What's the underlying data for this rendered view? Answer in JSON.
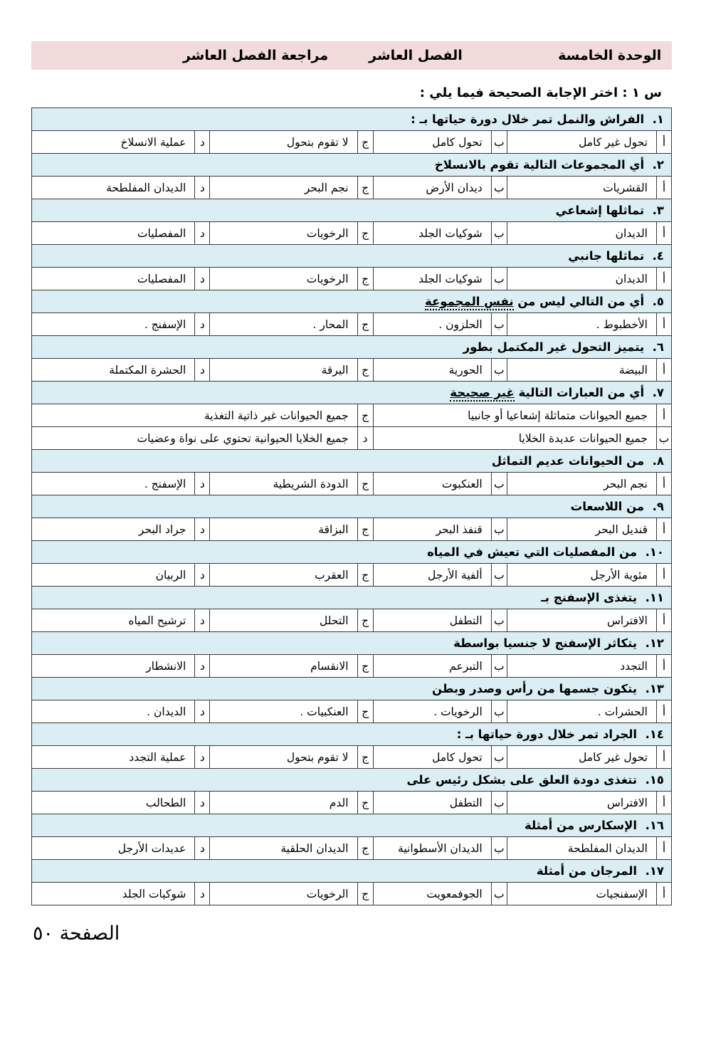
{
  "banner": {
    "unit_label": "الوحدة الخامسة",
    "chapter_label": "الفصل العاشر",
    "review_label": "مراجعة الفصل العاشر",
    "bg_color": "#F2DCDB"
  },
  "instruction": "س ١ : اختر الإجابة الصحيحة فيما يلي :",
  "footer": {
    "page_label": "الصفحة ٥٠"
  },
  "colors": {
    "question_row_bg": "#DAEEF3",
    "banner_bg": "#F2DCDB",
    "table_border": "#3a3a3a"
  },
  "quiz": {
    "letters": [
      "أ",
      "ب",
      "ج",
      "د"
    ],
    "questions": [
      {
        "num": "١",
        "title": "الفراش والنمل تمر خلال دورة حياتها بـ :",
        "options": [
          "تحول غير كامل",
          "تحول كامل",
          "لا تقوم بتحول",
          "عملية الانسلاخ"
        ]
      },
      {
        "num": "٢",
        "title": "أي المجموعات التالية تقوم بالانسلاخ",
        "options": [
          "القشريات",
          "ديدان الأرض",
          "نجم البحر",
          "الديدان المفلطحة"
        ]
      },
      {
        "num": "٣",
        "title": "تماثلها إشعاعي",
        "options": [
          "الديدان",
          "شوكيات الجلد",
          "الرخويات",
          "المفصليات"
        ]
      },
      {
        "num": "٤",
        "title": "تماثلها جانبي",
        "options": [
          "الديدان",
          "شوكيات الجلد",
          "الرخويات",
          "المفصليات"
        ]
      },
      {
        "num": "٥",
        "title": "أي من التالي ليس من ",
        "underlined": "نفس المجموعة",
        "options": [
          "الأخطبوط .",
          "الحلزون .",
          "المحار .",
          "الإسفنج ."
        ]
      },
      {
        "num": "٦",
        "title": "يتميز التحول غير المكتمل بطور",
        "options": [
          "البيضة",
          "الحورية",
          "اليرقة",
          "الحشرة المكتملة"
        ]
      },
      {
        "num": "٧",
        "title": "أي من العبارات التالية ",
        "underlined": "غير صحيحة",
        "layout": "2x2",
        "options": [
          "جميع الحيوانات متماثلة إشعاعيا أو جانبيا",
          "جميع الحيوانات عديدة الخلايا",
          "جميع الحيوانات غير ذاتية التغذية",
          "جميع الخلايا الحيوانية تحتوي على نواة وعضيات"
        ]
      },
      {
        "num": "٨",
        "title": "من الحيوانات عديم التماثل",
        "options": [
          "نجم البحر",
          "العنكبوت",
          "الدودة الشريطية",
          "الإسفنج ."
        ]
      },
      {
        "num": "٩",
        "title": "من اللاسعات",
        "options": [
          "قنديل البحر",
          "قنفذ البحر",
          "البزاقة",
          "جراد البحر"
        ]
      },
      {
        "num": "١٠",
        "title": "من المفصليات التي تعيش في المياه",
        "options": [
          "مئوية الأرجل",
          "ألفية الأرجل",
          "العقرب",
          "الربيان"
        ]
      },
      {
        "num": "١١",
        "title": "يتغذى الإسفنج بـ",
        "options": [
          "الافتراس",
          "التطفل",
          "التحلل",
          "ترشيح المياه"
        ]
      },
      {
        "num": "١٢",
        "title": "يتكاثر الإسفنج لا جنسيا بواسطة",
        "options": [
          "التجدد",
          "التبرعم",
          "الانقسام",
          "الانشطار"
        ]
      },
      {
        "num": "١٣",
        "title": "يتكون جسمها من رأس وصدر وبطن",
        "options": [
          "الحشرات .",
          "الرخويات .",
          "العنكبيات .",
          "الديدان ."
        ]
      },
      {
        "num": "١٤",
        "title": "الجراد تمر خلال دورة حياتها بـ :",
        "options": [
          "تحول غير كامل",
          "تحول كامل",
          "لا تقوم بتحول",
          "عملية التجدد"
        ]
      },
      {
        "num": "١٥",
        "title": "تتغذى دودة العلق على بشكل رئيس على",
        "options": [
          "الافتراس",
          "التطفل",
          "الدم",
          "الطحالب"
        ]
      },
      {
        "num": "١٦",
        "title": "الإسكارس من أمثلة",
        "options": [
          "الديدان المفلطحة",
          "الديدان الأسطوانية",
          "الديدان الحلقية",
          "عديدات الأرجل"
        ]
      },
      {
        "num": "١٧",
        "title": "المرجان من أمثلة",
        "options": [
          "الإسفنجيات",
          "الجوفمعويت",
          "الرخويات",
          "شوكيات الجلد"
        ]
      }
    ]
  }
}
